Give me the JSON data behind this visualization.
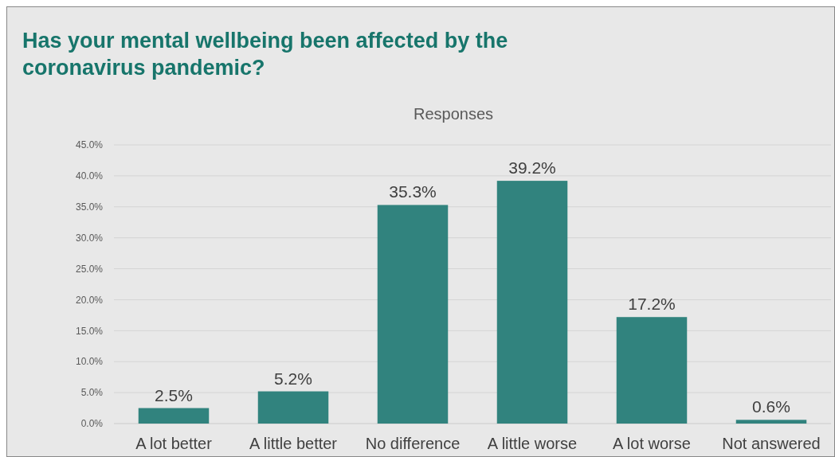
{
  "chart_data": {
    "type": "bar",
    "title": "Has your mental wellbeing been affected by the coronavirus pandemic?",
    "subtitle": "Responses",
    "categories": [
      "A lot better",
      "A little better",
      "No difference",
      "A little worse",
      "A lot worse",
      "Not answered"
    ],
    "values": [
      2.5,
      5.2,
      35.3,
      39.2,
      17.2,
      0.6
    ],
    "color": "#31837e",
    "value_labels": [
      "2.5%",
      "5.2%",
      "35.3%",
      "39.2%",
      "17.2%",
      "0.6%"
    ],
    "ylim": [
      0,
      45
    ],
    "yticks": [
      {
        "value": 0,
        "label": "0.0%"
      },
      {
        "value": 5,
        "label": "5.0%"
      },
      {
        "value": 10,
        "label": "10.0%"
      },
      {
        "value": 15,
        "label": "15.0%"
      },
      {
        "value": 20,
        "label": "20.0%"
      },
      {
        "value": 25,
        "label": "25.0%"
      },
      {
        "value": 30,
        "label": "30.0%"
      },
      {
        "value": 35,
        "label": "35.0%"
      },
      {
        "value": 40,
        "label": "40.0%"
      },
      {
        "value": 45,
        "label": "45.0%"
      }
    ],
    "grid": "y"
  }
}
